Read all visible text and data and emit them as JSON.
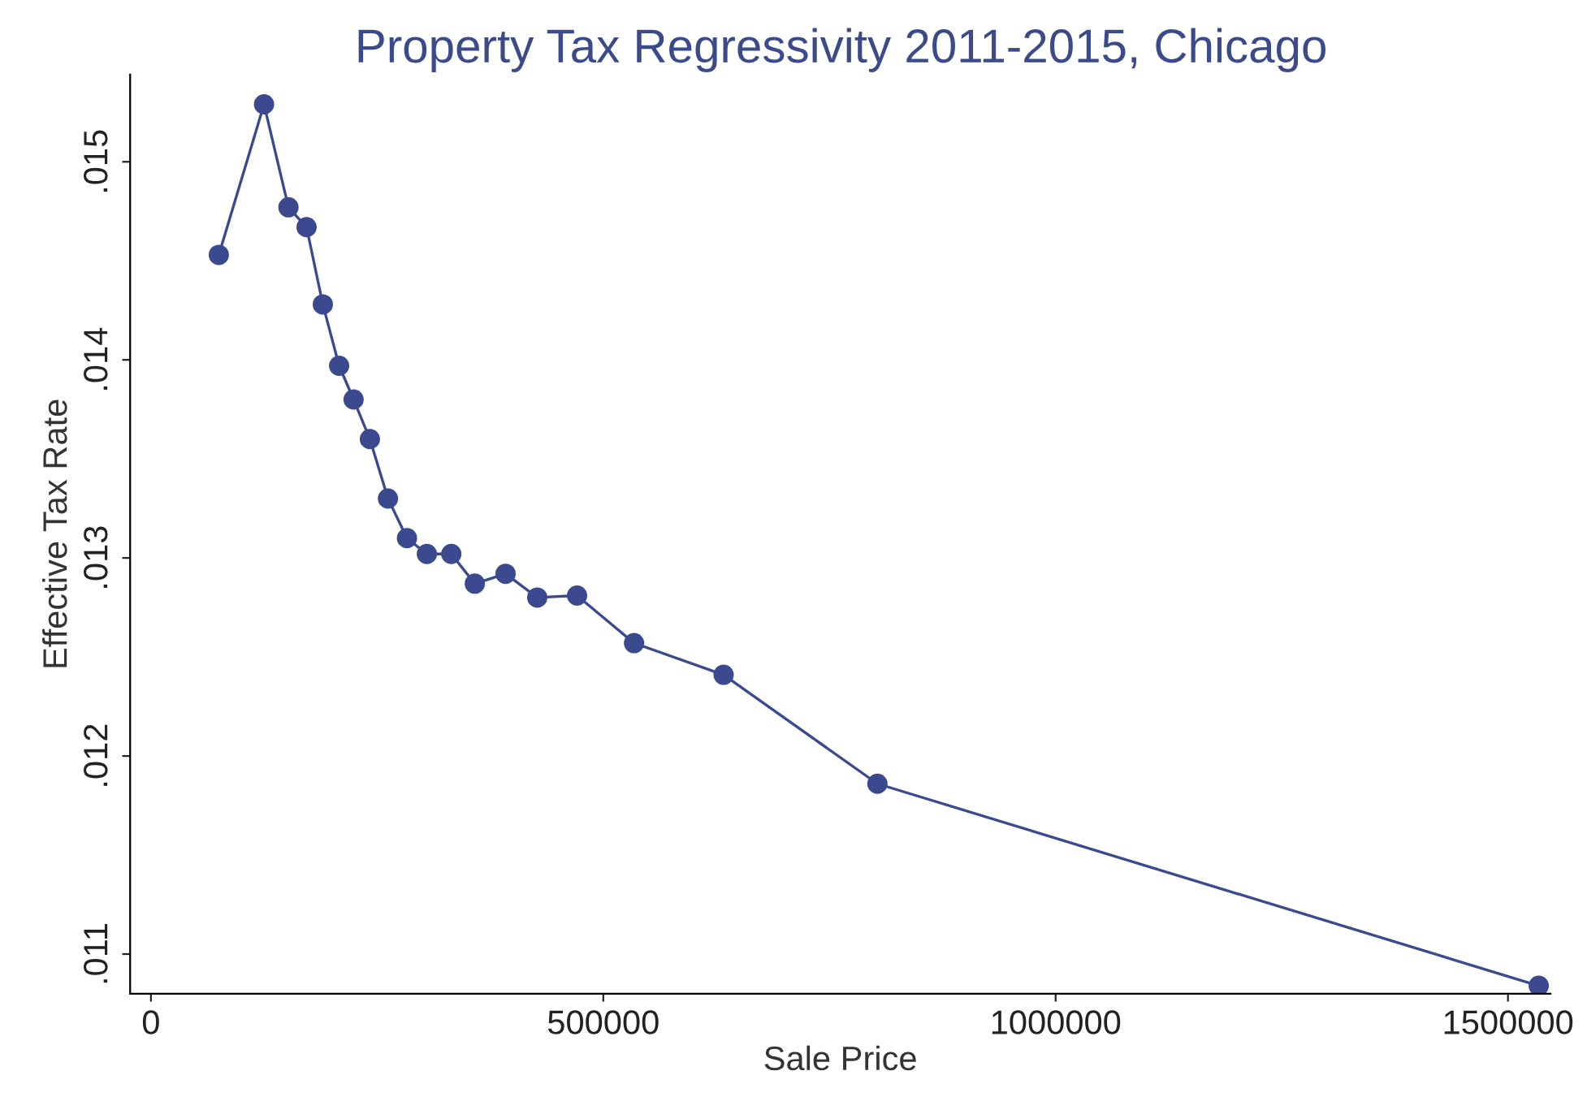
{
  "chart_data": {
    "type": "line",
    "title": "Property Tax Regressivity 2011-2015, Chicago",
    "xlabel": "Sale Price",
    "ylabel": "Effective Tax Rate",
    "series": [
      {
        "color": "#3b4a8f",
        "x": [
          75000,
          125000,
          152000,
          172000,
          190000,
          208000,
          224000,
          242000,
          262000,
          283000,
          305000,
          332000,
          358000,
          392000,
          427000,
          471000,
          534000,
          633000,
          803000,
          1534000
        ],
        "values": [
          0.01453,
          0.01529,
          0.01477,
          0.01467,
          0.01428,
          0.01397,
          0.0138,
          0.0136,
          0.0133,
          0.0131,
          0.01302,
          0.01302,
          0.01287,
          0.01292,
          0.0128,
          0.01281,
          0.01257,
          0.01241,
          0.01186,
          0.01084
        ]
      }
    ],
    "xlim": [
      -23000,
      1547000
    ],
    "ylim": [
      0.0108,
      0.01544
    ],
    "xticks": [
      0,
      500000,
      1000000,
      1500000
    ],
    "yticks": [
      {
        "value": 0.011,
        "label": ".011"
      },
      {
        "value": 0.012,
        "label": ".012"
      },
      {
        "value": 0.013,
        "label": ".013"
      },
      {
        "value": 0.014,
        "label": ".014"
      },
      {
        "value": 0.015,
        "label": ".015"
      }
    ],
    "marker": "circle",
    "line_style": "solid",
    "grid": false,
    "legend": false
  }
}
